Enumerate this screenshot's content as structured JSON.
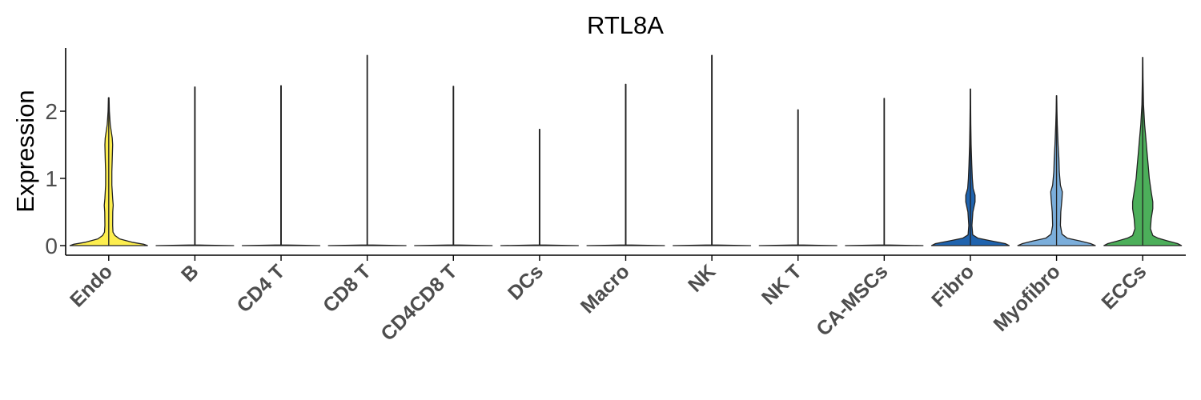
{
  "chart_data": {
    "type": "violin",
    "title": "RTL8A",
    "xlabel": "",
    "ylabel": "Expression",
    "ylim": [
      -0.15,
      2.95
    ],
    "yticks": [
      0,
      1,
      2
    ],
    "ytick_labels": [
      "0",
      "1",
      "2"
    ],
    "grid": false,
    "legend": "none",
    "categories": [
      "Endo",
      "B",
      "CD4 T",
      "CD8 T",
      "CD4CD8 T",
      "DCs",
      "Macro",
      "NK",
      "NK T",
      "CA-MSCs",
      "Fibro",
      "Myofibro",
      "ECCs"
    ],
    "max_values": [
      2.2,
      2.36,
      2.38,
      2.83,
      2.37,
      1.73,
      2.4,
      2.83,
      2.02,
      2.19,
      2.33,
      2.23,
      2.8
    ],
    "colors": [
      "#FDEE4E",
      "#FFFFFF",
      "#FFFFFF",
      "#FFFFFF",
      "#FFFFFF",
      "#FFFFFF",
      "#FFFFFF",
      "#FFFFFF",
      "#FFFFFF",
      "#FFFFFF",
      "#1F63AE",
      "#7BAEDB",
      "#4CAF5A"
    ],
    "density_profiles": [
      [
        [
          0,
          0.5
        ],
        [
          0.02,
          0.45
        ],
        [
          0.05,
          0.3
        ],
        [
          0.1,
          0.14
        ],
        [
          0.15,
          0.08
        ],
        [
          0.2,
          0.055
        ],
        [
          0.3,
          0.05
        ],
        [
          0.5,
          0.052
        ],
        [
          0.6,
          0.058
        ],
        [
          0.7,
          0.05
        ],
        [
          0.9,
          0.04
        ],
        [
          1.1,
          0.04
        ],
        [
          1.3,
          0.045
        ],
        [
          1.5,
          0.05
        ],
        [
          1.6,
          0.045
        ],
        [
          1.8,
          0.02
        ],
        [
          2.0,
          0.008
        ],
        [
          2.2,
          0.004
        ]
      ],
      [
        [
          0,
          0.5
        ],
        [
          0.01,
          0.003
        ],
        [
          2.36,
          0.003
        ]
      ],
      [
        [
          0,
          0.5
        ],
        [
          0.01,
          0.003
        ],
        [
          2.38,
          0.003
        ]
      ],
      [
        [
          0,
          0.5
        ],
        [
          0.01,
          0.003
        ],
        [
          2.83,
          0.003
        ]
      ],
      [
        [
          0,
          0.5
        ],
        [
          0.01,
          0.003
        ],
        [
          2.37,
          0.003
        ]
      ],
      [
        [
          0,
          0.5
        ],
        [
          0.01,
          0.003
        ],
        [
          1.73,
          0.003
        ]
      ],
      [
        [
          0,
          0.5
        ],
        [
          0.01,
          0.003
        ],
        [
          2.4,
          0.003
        ]
      ],
      [
        [
          0,
          0.5
        ],
        [
          0.01,
          0.003
        ],
        [
          2.83,
          0.003
        ]
      ],
      [
        [
          0,
          0.5
        ],
        [
          0.01,
          0.003
        ],
        [
          2.02,
          0.003
        ]
      ],
      [
        [
          0,
          0.5
        ],
        [
          0.01,
          0.003
        ],
        [
          2.19,
          0.003
        ]
      ],
      [
        [
          0,
          0.5
        ],
        [
          0.03,
          0.45
        ],
        [
          0.07,
          0.27
        ],
        [
          0.11,
          0.1
        ],
        [
          0.16,
          0.03
        ],
        [
          0.3,
          0.02
        ],
        [
          0.5,
          0.032
        ],
        [
          0.65,
          0.06
        ],
        [
          0.75,
          0.06
        ],
        [
          0.85,
          0.035
        ],
        [
          1.0,
          0.025
        ],
        [
          1.2,
          0.018
        ],
        [
          1.5,
          0.01
        ],
        [
          1.8,
          0.006
        ],
        [
          2.1,
          0.003
        ],
        [
          2.33,
          0.002
        ]
      ],
      [
        [
          0,
          0.5
        ],
        [
          0.03,
          0.44
        ],
        [
          0.07,
          0.3
        ],
        [
          0.11,
          0.14
        ],
        [
          0.17,
          0.07
        ],
        [
          0.3,
          0.05
        ],
        [
          0.5,
          0.055
        ],
        [
          0.7,
          0.07
        ],
        [
          0.8,
          0.075
        ],
        [
          0.9,
          0.05
        ],
        [
          1.1,
          0.035
        ],
        [
          1.3,
          0.03
        ],
        [
          1.5,
          0.02
        ],
        [
          1.8,
          0.01
        ],
        [
          2.0,
          0.005
        ],
        [
          2.23,
          0.002
        ]
      ],
      [
        [
          0,
          0.5
        ],
        [
          0.03,
          0.45
        ],
        [
          0.07,
          0.32
        ],
        [
          0.11,
          0.2
        ],
        [
          0.15,
          0.13
        ],
        [
          0.25,
          0.1
        ],
        [
          0.4,
          0.11
        ],
        [
          0.55,
          0.13
        ],
        [
          0.65,
          0.13
        ],
        [
          0.8,
          0.11
        ],
        [
          1.0,
          0.085
        ],
        [
          1.2,
          0.07
        ],
        [
          1.4,
          0.055
        ],
        [
          1.6,
          0.04
        ],
        [
          1.8,
          0.025
        ],
        [
          2.1,
          0.01
        ],
        [
          2.5,
          0.004
        ],
        [
          2.8,
          0.002
        ]
      ]
    ]
  }
}
